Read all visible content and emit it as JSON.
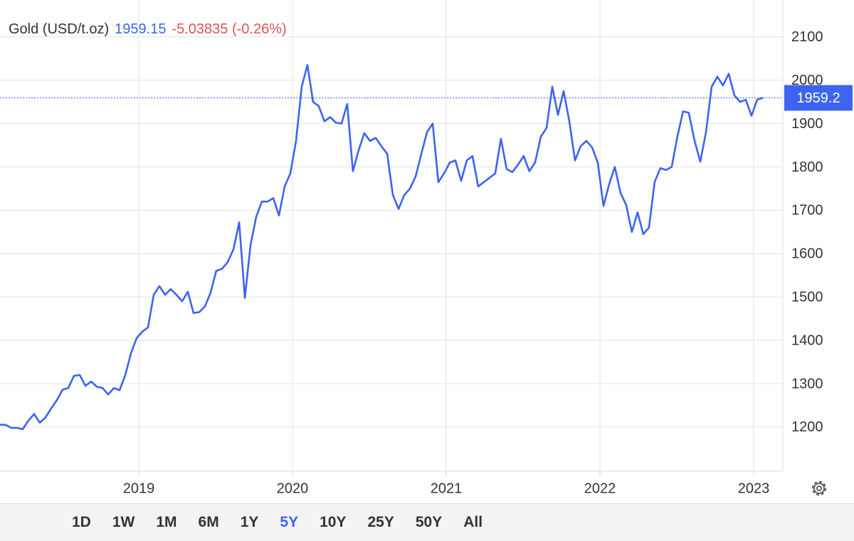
{
  "chart_data": {
    "type": "line",
    "change": "-5.03835 (-0.26%)",
    "price": 1959.15,
    "current_value": 1959.2,
    "x": [
      2018.097,
      2018.134,
      2018.171,
      2018.208,
      2018.245,
      2018.282,
      2018.319,
      2018.356,
      2018.393,
      2018.43,
      2018.467,
      2018.504,
      2018.541,
      2018.578,
      2018.616,
      2018.653,
      2018.69,
      2018.727,
      2018.764,
      2018.801,
      2018.838,
      2018.875,
      2018.912,
      2018.949,
      2018.986,
      2019.023,
      2019.06,
      2019.097,
      2019.134,
      2019.171,
      2019.208,
      2019.245,
      2019.282,
      2019.319,
      2019.356,
      2019.393,
      2019.43,
      2019.467,
      2019.504,
      2019.541,
      2019.578,
      2019.616,
      2019.653,
      2019.69,
      2019.727,
      2019.764,
      2019.801,
      2019.838,
      2019.875,
      2019.912,
      2019.949,
      2019.986,
      2020.023,
      2020.06,
      2020.097,
      2020.134,
      2020.171,
      2020.208,
      2020.245,
      2020.282,
      2020.319,
      2020.356,
      2020.393,
      2020.43,
      2020.467,
      2020.504,
      2020.541,
      2020.578,
      2020.616,
      2020.653,
      2020.69,
      2020.727,
      2020.764,
      2020.801,
      2020.838,
      2020.875,
      2020.912,
      2020.949,
      2020.986,
      2021.023,
      2021.06,
      2021.097,
      2021.134,
      2021.171,
      2021.208,
      2021.245,
      2021.282,
      2021.319,
      2021.356,
      2021.393,
      2021.43,
      2021.467,
      2021.504,
      2021.541,
      2021.578,
      2021.616,
      2021.653,
      2021.69,
      2021.727,
      2021.764,
      2021.801,
      2021.838,
      2021.875,
      2021.912,
      2021.949,
      2021.986,
      2022.023,
      2022.06,
      2022.097,
      2022.134,
      2022.171,
      2022.208,
      2022.245,
      2022.282,
      2022.319,
      2022.356,
      2022.393,
      2022.43,
      2022.467,
      2022.504,
      2022.541,
      2022.578,
      2022.616,
      2022.653,
      2022.69,
      2022.727,
      2022.764,
      2022.801,
      2022.838,
      2022.875,
      2022.912,
      2022.949,
      2022.986,
      2023.023,
      2023.06
    ],
    "series": [
      {
        "name": "Gold (USD/t.oz)",
        "color": "#3c64f0",
        "values": [
          1205,
          1205,
          1198,
          1198,
          1195,
          1215,
          1230,
          1210,
          1222,
          1243,
          1262,
          1286,
          1290,
          1318,
          1320,
          1295,
          1305,
          1293,
          1290,
          1275,
          1290,
          1285,
          1320,
          1370,
          1405,
          1420,
          1430,
          1505,
          1525,
          1505,
          1518,
          1505,
          1490,
          1512,
          1463,
          1465,
          1478,
          1510,
          1560,
          1565,
          1580,
          1610,
          1672,
          1498,
          1620,
          1685,
          1720,
          1720,
          1728,
          1688,
          1755,
          1785,
          1860,
          1985,
          2035,
          1950,
          1940,
          1905,
          1915,
          1902,
          1900,
          1945,
          1790,
          1838,
          1878,
          1860,
          1867,
          1848,
          1830,
          1735,
          1703,
          1735,
          1750,
          1778,
          1830,
          1880,
          1900,
          1765,
          1785,
          1810,
          1815,
          1768,
          1815,
          1825,
          1755,
          1765,
          1775,
          1785,
          1865,
          1795,
          1788,
          1805,
          1825,
          1790,
          1810,
          1870,
          1890,
          1985,
          1920,
          1975,
          1905,
          1815,
          1848,
          1860,
          1845,
          1810,
          1710,
          1760,
          1800,
          1740,
          1712,
          1650,
          1695,
          1645,
          1660,
          1765,
          1797,
          1793,
          1800,
          1870,
          1928,
          1925,
          1860,
          1812,
          1880,
          1985,
          2008,
          1988,
          2015,
          1965,
          1950,
          1955,
          1918,
          1955,
          1959.15
        ]
      }
    ],
    "xlim": [
      2018.097,
      2023.19
    ],
    "xticks": [
      2019,
      2020,
      2021,
      2022,
      2023
    ],
    "ylim": [
      1098,
      2185
    ],
    "yticks": [
      1200,
      1300,
      1400,
      1500,
      1600,
      1700,
      1800,
      1900,
      2000,
      2100
    ],
    "grid": true,
    "price_color": "#3c64f0",
    "change_color": "#e05252",
    "ranges": [
      "1D",
      "1W",
      "1M",
      "6M",
      "1Y",
      "5Y",
      "10Y",
      "25Y",
      "50Y",
      "All"
    ],
    "selected_range": "5Y",
    "selected_color": "#3c64f0"
  }
}
